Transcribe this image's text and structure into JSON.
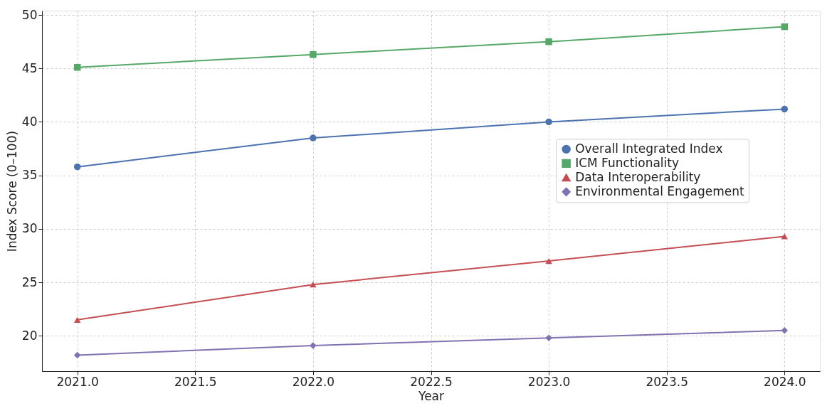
{
  "chart_data": {
    "type": "line",
    "xlabel": "Year",
    "ylabel": "Index Score (0–100)",
    "x": [
      2021,
      2022,
      2023,
      2024
    ],
    "series": [
      {
        "name": "Overall Integrated Index",
        "color": "#4c72b0",
        "marker": "circle",
        "values": [
          35.8,
          38.5,
          40.0,
          41.2
        ]
      },
      {
        "name": "ICM Functionality",
        "color": "#55a868",
        "marker": "square",
        "values": [
          45.1,
          46.3,
          47.5,
          48.9
        ]
      },
      {
        "name": "Data Interoperability",
        "color": "#c44e52",
        "marker": "triangle",
        "values": [
          21.5,
          24.8,
          27.0,
          29.3
        ]
      },
      {
        "name": "Environmental Engagement",
        "color": "#8172b2",
        "marker": "diamond",
        "values": [
          18.2,
          19.1,
          19.8,
          20.5
        ]
      }
    ],
    "xlim": [
      2020.85,
      2024.15
    ],
    "xticks": [
      {
        "value": 2021,
        "label": "2021.0"
      },
      {
        "value": 2021.5,
        "label": "2021.5"
      },
      {
        "value": 2022,
        "label": "2022.0"
      },
      {
        "value": 2022.5,
        "label": "2022.5"
      },
      {
        "value": 2023,
        "label": "2023.0"
      },
      {
        "value": 2023.5,
        "label": "2023.5"
      },
      {
        "value": 2024,
        "label": "2024.0"
      }
    ],
    "ylim": [
      16.7,
      50.4
    ],
    "yticks": [
      20,
      25,
      30,
      35,
      40,
      45,
      50
    ],
    "grid": true,
    "legend": "right",
    "line_style": "solid"
  }
}
